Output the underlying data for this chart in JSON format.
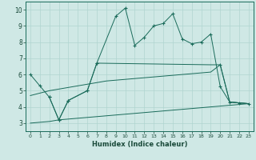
{
  "background_color": "#cfe8e5",
  "grid_color": "#b0d5d0",
  "line_color": "#1a6b5a",
  "xlabel": "Humidex (Indice chaleur)",
  "xlim": [
    -0.5,
    23.5
  ],
  "ylim": [
    2.5,
    10.5
  ],
  "xticks": [
    0,
    1,
    2,
    3,
    4,
    5,
    6,
    7,
    8,
    9,
    10,
    11,
    12,
    13,
    14,
    15,
    16,
    17,
    18,
    19,
    20,
    21,
    22,
    23
  ],
  "yticks": [
    3,
    4,
    5,
    6,
    7,
    8,
    9,
    10
  ],
  "series": [
    {
      "x": [
        0,
        1,
        2,
        3,
        4,
        5,
        6,
        7,
        8,
        9,
        10,
        11,
        12,
        13,
        14,
        15,
        16,
        17,
        18,
        19,
        20,
        21,
        22,
        23
      ],
      "y": [
        3.0,
        3.05,
        3.1,
        3.2,
        3.25,
        3.3,
        3.35,
        3.4,
        3.45,
        3.5,
        3.55,
        3.6,
        3.65,
        3.7,
        3.75,
        3.8,
        3.85,
        3.9,
        3.95,
        4.0,
        4.05,
        4.1,
        4.15,
        4.2
      ],
      "markers": false
    },
    {
      "x": [
        0,
        1,
        2,
        3,
        4,
        5,
        6,
        7,
        8,
        9,
        10,
        11,
        12,
        13,
        14,
        15,
        16,
        17,
        18,
        19,
        20,
        21,
        22,
        23
      ],
      "y": [
        4.7,
        4.85,
        5.0,
        5.1,
        5.2,
        5.3,
        5.4,
        5.5,
        5.6,
        5.65,
        5.7,
        5.75,
        5.8,
        5.85,
        5.9,
        5.95,
        6.0,
        6.05,
        6.1,
        6.15,
        6.6,
        4.3,
        4.25,
        4.2
      ],
      "markers": false
    },
    {
      "x": [
        2,
        3,
        4,
        6,
        7,
        19,
        20,
        21,
        22,
        23
      ],
      "y": [
        4.6,
        3.2,
        4.4,
        5.0,
        6.7,
        6.6,
        6.6,
        4.3,
        4.25,
        4.2
      ],
      "marker_x": [
        2,
        3,
        4,
        6,
        7,
        20
      ],
      "marker_y": [
        4.6,
        3.2,
        4.4,
        5.0,
        6.7,
        6.6
      ],
      "markers": true
    },
    {
      "x": [
        0,
        1,
        2,
        3,
        4,
        6,
        7,
        9,
        10,
        11,
        12,
        13,
        14,
        15,
        16,
        17,
        18,
        19,
        20,
        21,
        22,
        23
      ],
      "y": [
        6.0,
        5.3,
        4.6,
        3.2,
        4.4,
        5.0,
        6.7,
        9.6,
        10.1,
        7.8,
        8.3,
        9.0,
        9.15,
        9.75,
        8.2,
        7.9,
        8.0,
        8.5,
        5.25,
        4.3,
        4.25,
        4.2
      ],
      "markers": true
    }
  ]
}
